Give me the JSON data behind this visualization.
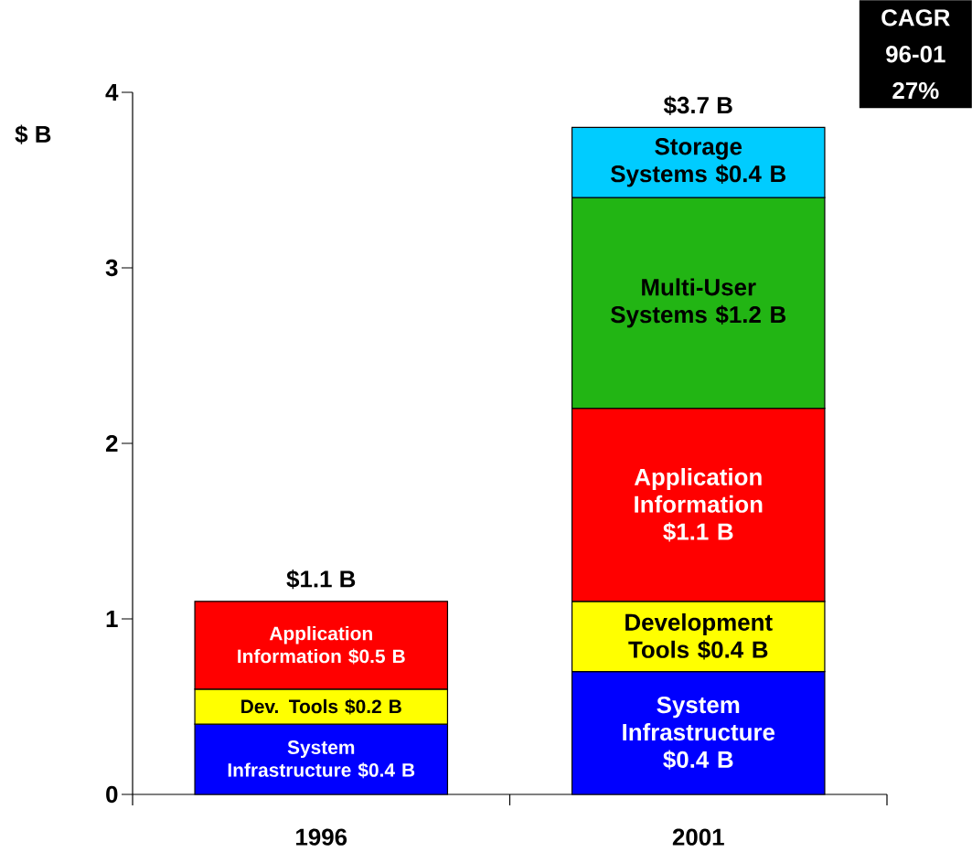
{
  "chart_data": {
    "type": "bar",
    "stacked": true,
    "categories": [
      "1996",
      "2001"
    ],
    "ylabel": "$ B",
    "ylim": [
      0,
      4
    ],
    "yticks": [
      0,
      1,
      2,
      3,
      4
    ],
    "series": [
      {
        "color": "#0000ff",
        "values": [
          0.4,
          0.7
        ],
        "value_labels": [
          "System Infrastructure $0.4 B",
          "System Infrastructure $0.4 B"
        ]
      },
      {
        "color": "#ffff00",
        "values": [
          0.2,
          0.4
        ],
        "value_labels": [
          "Dev. Tools $0.2 B",
          "Development Tools $0.4 B"
        ]
      },
      {
        "color": "#ff0000",
        "values": [
          0.5,
          1.1
        ],
        "value_labels": [
          "Application Information $0.5 B",
          "Application Information $1.1 B"
        ]
      },
      {
        "color": "#22b514",
        "values": [
          null,
          1.2
        ],
        "value_labels": [
          null,
          "Multi-User Systems $1.2 B"
        ]
      },
      {
        "color": "#00ccff",
        "values": [
          null,
          0.4
        ],
        "value_labels": [
          null,
          "Storage Systems $0.4 B"
        ]
      }
    ],
    "totals": [
      "$1.1 B",
      "$3.7 B"
    ],
    "annotations": [
      "CAGR 96-01 27%"
    ]
  }
}
